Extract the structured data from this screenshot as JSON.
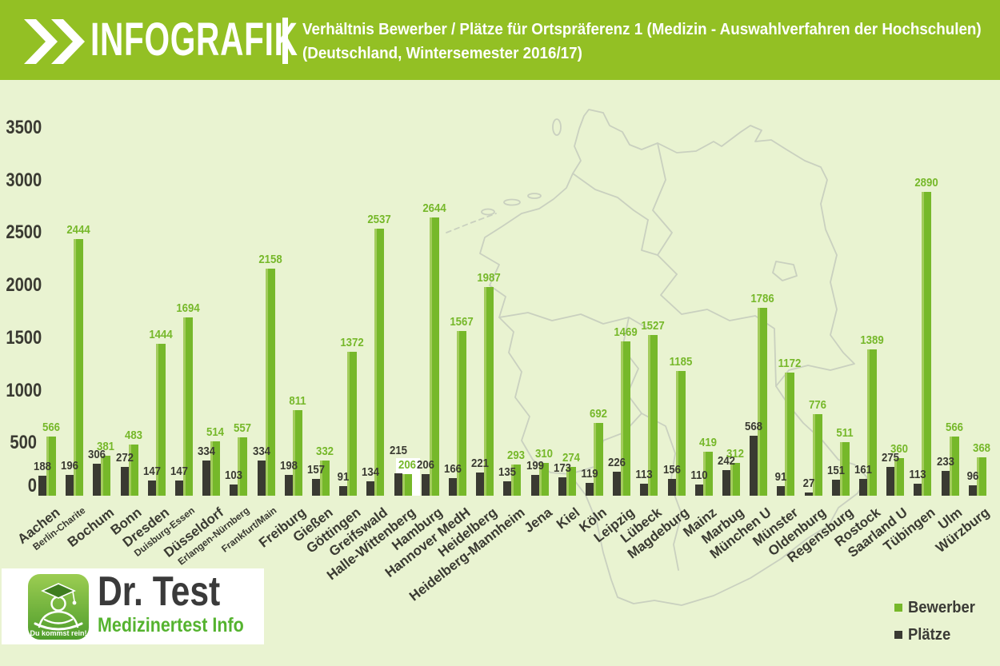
{
  "header": {
    "brand": "INFOGRAFIK",
    "title_line1": "Verhältnis Bewerber / Plätze für Ortspräferenz 1 (Medizin - Auswahlverfahren der Hochschulen)",
    "title_line2": "(Deutschland, Wintersemester 2016/17)"
  },
  "chart_data": {
    "type": "bar",
    "title": "Verhältnis Bewerber / Plätze für Ortspräferenz 1 (Medizin - Auswahlverfahren der Hochschulen)",
    "subtitle": "(Deutschland, Wintersemester 2016/17)",
    "categories": [
      "Aachen",
      "Berlin-Charite",
      "Bochum",
      "Bonn",
      "Dresden",
      "Duisburg-Essen",
      "Düsseldorf",
      "Erlangen-Nürnberg",
      "Frankfurt/Main",
      "Freiburg",
      "Gießen",
      "Göttingen",
      "Greifswald",
      "Halle-Wittenberg",
      "Hamburg",
      "Hannover MedH",
      "Heidelberg",
      "Heidelberg-Mannheim",
      "Jena",
      "Kiel",
      "Köln",
      "Leipzig",
      "Lübeck",
      "Magdeburg",
      "Mainz",
      "Marbug",
      "München U",
      "Münster",
      "Oldenburg",
      "Regensburg",
      "Rostock",
      "Saarland U",
      "Tübingen",
      "Ulm",
      "Würzburg"
    ],
    "series": [
      {
        "name": "Bewerber",
        "color": "#76b82a",
        "values": [
          566,
          2444,
          381,
          483,
          1444,
          1694,
          514,
          557,
          2158,
          811,
          332,
          1372,
          2537,
          206,
          2644,
          1567,
          1987,
          293,
          310,
          274,
          692,
          1469,
          1527,
          1185,
          419,
          312,
          1786,
          1172,
          776,
          511,
          1389,
          360,
          2890,
          566,
          368
        ]
      },
      {
        "name": "Plätze",
        "color": "#3a3a32",
        "values": [
          188,
          196,
          306,
          272,
          147,
          147,
          334,
          103,
          334,
          198,
          157,
          91,
          134,
          215,
          206,
          166,
          221,
          135,
          199,
          173,
          119,
          226,
          113,
          156,
          110,
          242,
          568,
          91,
          27,
          151,
          161,
          275,
          113,
          233,
          96
        ]
      }
    ],
    "ylim": [
      0,
      3500
    ],
    "yticks": [
      0,
      500,
      1000,
      1500,
      2000,
      2500,
      3000,
      3500
    ],
    "grid": "off",
    "legend_position": "bottom-right",
    "small_label_indices": [
      1,
      5,
      7,
      8
    ],
    "highlight_index": 13,
    "highlight_label_bg": "#ffffff"
  },
  "legend": {
    "items": [
      {
        "label": "Bewerber",
        "color": "#76b82a"
      },
      {
        "label": "Plätze",
        "color": "#3a3a32"
      }
    ]
  },
  "logo": {
    "title": "Dr. Test",
    "subtitle": "Medizinertest Info",
    "badge": "Du kommst rein!"
  },
  "colors": {
    "header_bg": "#93c024",
    "page_bg": "#e9f3d1",
    "bar_green": "#76b82a",
    "bar_black": "#3a3a32",
    "map_outline": "#c9d0bf",
    "logo_title": "#3a3a3a",
    "logo_subtitle": "#55b32f"
  }
}
